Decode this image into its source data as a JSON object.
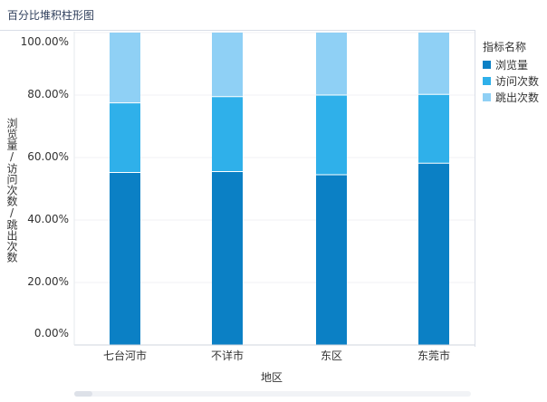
{
  "title": "百分比堆积柱形图",
  "chart_data": {
    "type": "bar",
    "stacked": "percent",
    "categories": [
      "七台河市",
      "不详市",
      "东区",
      "东莞市"
    ],
    "series": [
      {
        "name": "浏览量",
        "color": "#0b80c5",
        "values": [
          55.2,
          55.5,
          54.5,
          58.2
        ]
      },
      {
        "name": "访问次数",
        "color": "#2fb0ea",
        "values": [
          22.3,
          24.0,
          25.5,
          22.0
        ]
      },
      {
        "name": "跳出次数",
        "color": "#8fd0f5",
        "values": [
          22.5,
          20.5,
          20.0,
          19.8
        ]
      }
    ],
    "yticks": [
      "0.00%",
      "20.00%",
      "40.00%",
      "60.00%",
      "80.00%",
      "100.00%"
    ],
    "ylim": [
      0,
      100
    ],
    "xlabel": "地区",
    "ylabel": "浏览量/访问次数/跳出次数",
    "legend": {
      "title": "指标名称",
      "position": "right"
    },
    "grid": true
  }
}
